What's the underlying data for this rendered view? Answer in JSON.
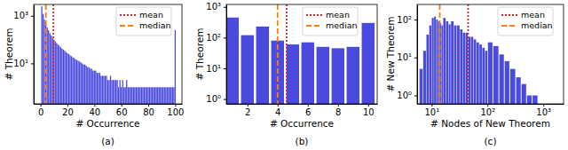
{
  "chart_data": [
    {
      "type": "bar",
      "title": "(a)",
      "x_label": "# Occurrence",
      "y_label": "# Theorem",
      "log": "y",
      "color": "#2a2ad8",
      "legend": "upper right",
      "bins": [
        0.5,
        1.5,
        2.5,
        3.5,
        4.5,
        5.5,
        6.5,
        7.5,
        8.5,
        9.5,
        10.5,
        11.5,
        12.5,
        13.5,
        14.5,
        15.5,
        16.5,
        17.5,
        18.5,
        19.5,
        20.5,
        21.5,
        22.5,
        23.5,
        24.5,
        25.5,
        26.5,
        27.5,
        28.5,
        29.5,
        30.5,
        31.5,
        32.5,
        33.5,
        34.5,
        35.5,
        36.5,
        37.5,
        38.5,
        39.5,
        40.5,
        41.5,
        42.5,
        43.5,
        44.5,
        45.5,
        46.5,
        47.5,
        48.5,
        49.5,
        50.5,
        51.5,
        52.5,
        53.5,
        54.5,
        55.5,
        56.5,
        57.5,
        58.5,
        59.5,
        60.5,
        61.5,
        62.5,
        63.5,
        64.5,
        65.5,
        66.5,
        67.5,
        68.5,
        69.5,
        70.5,
        71.5,
        72.5,
        73.5,
        74.5,
        75.5,
        76.5,
        77.5,
        78.5,
        79.5,
        80.5,
        81.5,
        82.5,
        83.5,
        84.5,
        85.5,
        86.5,
        87.5,
        88.5,
        89.5,
        90.5,
        91.5,
        92.5,
        93.5,
        94.5,
        95.5,
        96.5,
        97.5,
        98.5,
        99.5,
        100.5
      ],
      "values": [
        2500,
        1200,
        700,
        450,
        320,
        250,
        190,
        150,
        120,
        100,
        85,
        72,
        62,
        55,
        48,
        42,
        38,
        34,
        30,
        27,
        25,
        22,
        20,
        18,
        17,
        15,
        14,
        13,
        12,
        11,
        10,
        9,
        9,
        8,
        7,
        7,
        6,
        6,
        5,
        5,
        5,
        4,
        4,
        4,
        3,
        3,
        3,
        3,
        3,
        2,
        2,
        3,
        2,
        2,
        2,
        2,
        2,
        1,
        2,
        1,
        2,
        1,
        1,
        2,
        1,
        1,
        1,
        1,
        1,
        1,
        1,
        1,
        1,
        1,
        1,
        1,
        1,
        1,
        1,
        1,
        1,
        1,
        1,
        1,
        1,
        1,
        1,
        1,
        1,
        1,
        1,
        1,
        1,
        1,
        1,
        1,
        1,
        1,
        1,
        250
      ],
      "series": [
        {
          "name": "mean",
          "type": "vline",
          "color": "#d62728",
          "line_style": "dotted",
          "values": [
            9.6
          ]
        },
        {
          "name": "median",
          "type": "vline",
          "color": "#ff7f0e",
          "line_style": "dashed",
          "values": [
            4
          ]
        }
      ],
      "xlim": [
        -5,
        105
      ],
      "xticks": [
        0,
        20,
        40,
        60,
        80,
        100
      ],
      "ylim": [
        0.2,
        3000
      ],
      "yticks": [
        {
          "value": 10,
          "label": "10¹"
        },
        {
          "value": 1000,
          "label": "10³"
        }
      ]
    },
    {
      "type": "bar",
      "title": "(b)",
      "x_label": "# Occurrence",
      "y_label": "# Theorem",
      "log": "y",
      "color": "#2a2ad8",
      "legend": "upper right",
      "bins": [
        0.5,
        1.5,
        2.5,
        3.5,
        4.5,
        5.5,
        6.5,
        7.5,
        8.5,
        9.5,
        10.5
      ],
      "values": [
        450,
        120,
        230,
        80,
        60,
        70,
        50,
        45,
        50,
        300
      ],
      "series": [
        {
          "name": "mean",
          "type": "vline",
          "color": "#d62728",
          "line_style": "dotted",
          "values": [
            4.6
          ]
        },
        {
          "name": "median",
          "type": "vline",
          "color": "#ff7f0e",
          "line_style": "dashed",
          "values": [
            4
          ]
        }
      ],
      "xlim": [
        0.6,
        10.6
      ],
      "xticks": [
        2,
        4,
        6,
        8,
        10
      ],
      "ylim": [
        0.7,
        1200
      ],
      "yticks": [
        {
          "value": 1,
          "label": "10⁰"
        },
        {
          "value": 10,
          "label": "10¹"
        },
        {
          "value": 100,
          "label": "10²"
        },
        {
          "value": 1000,
          "label": "10³"
        }
      ]
    },
    {
      "type": "bar",
      "title": "(c)",
      "x_label": "# Nodes of New Theorem",
      "y_label": "# New Theorem",
      "log": true,
      "color": "#2a2ad8",
      "legend": "upper right",
      "bins": [
        6,
        7,
        8,
        9,
        10,
        11,
        12,
        13,
        14,
        15,
        16,
        18,
        20,
        22,
        25,
        28,
        32,
        36,
        40,
        45,
        50,
        56,
        63,
        71,
        80,
        90,
        100,
        125,
        160,
        200,
        250,
        320,
        400,
        500,
        630,
        800
      ],
      "values": [
        5,
        15,
        40,
        70,
        110,
        120,
        100,
        90,
        80,
        70,
        110,
        90,
        75,
        90,
        70,
        70,
        55,
        45,
        45,
        35,
        35,
        30,
        25,
        22,
        18,
        15,
        25,
        20,
        12,
        8,
        5,
        3,
        2,
        1,
        1
      ],
      "series": [
        {
          "name": "mean",
          "type": "vline",
          "color": "#d62728",
          "line_style": "dotted",
          "values": [
            45
          ]
        },
        {
          "name": "median",
          "type": "vline",
          "color": "#ff7f0e",
          "line_style": "dashed",
          "values": [
            14
          ]
        }
      ],
      "xlim": [
        5.5,
        2300
      ],
      "xticks": [
        {
          "value": 10,
          "label": "10¹"
        },
        {
          "value": 100,
          "label": "10²"
        },
        {
          "value": 1000,
          "label": "10³"
        }
      ],
      "ylim": [
        0.6,
        250
      ],
      "yticks": [
        {
          "value": 1,
          "label": "10⁰"
        },
        {
          "value": 10,
          "label": "10¹"
        },
        {
          "value": 100,
          "label": "10²"
        }
      ]
    }
  ]
}
